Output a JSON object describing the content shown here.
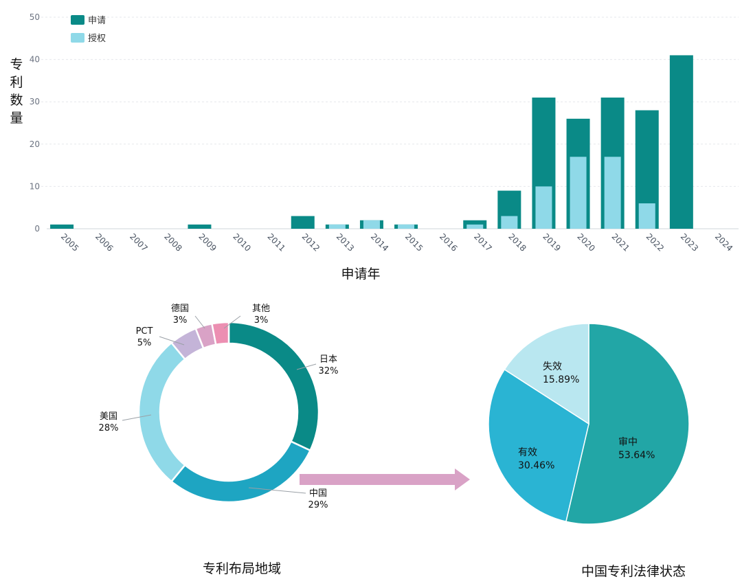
{
  "chart_data": [
    {
      "type": "bar",
      "ylabel": "专利数量",
      "xlabel": "申请年",
      "ylim": [
        0,
        50
      ],
      "yticks": [
        0,
        10,
        20,
        30,
        40,
        50
      ],
      "categories": [
        "2005",
        "2006",
        "2007",
        "2008",
        "2009",
        "2010",
        "2011",
        "2012",
        "2013",
        "2014",
        "2015",
        "2016",
        "2017",
        "2018",
        "2019",
        "2020",
        "2021",
        "2022",
        "2023",
        "2024"
      ],
      "series": [
        {
          "name": "申请",
          "color": "#0a8a87",
          "values": [
            1,
            0,
            0,
            0,
            1,
            0,
            0,
            3,
            1,
            2,
            1,
            0,
            2,
            9,
            31,
            26,
            31,
            28,
            41,
            0
          ]
        },
        {
          "name": "授权",
          "color": "#8fd9e8",
          "values": [
            0,
            0,
            0,
            0,
            0,
            0,
            0,
            0,
            1,
            2,
            1,
            0,
            1,
            3,
            10,
            17,
            17,
            6,
            0,
            0
          ]
        }
      ],
      "legend": "top-left",
      "grid": true
    },
    {
      "type": "pie",
      "title": "专利布局地域",
      "slices": [
        {
          "name": "日本",
          "pct": "32%",
          "value": 32,
          "color": "#0a8a87"
        },
        {
          "name": "中国",
          "pct": "29%",
          "value": 29,
          "color": "#1ea5c2"
        },
        {
          "name": "美国",
          "pct": "28%",
          "value": 28,
          "color": "#8fd9e8"
        },
        {
          "name": "PCT",
          "pct": "5%",
          "value": 5,
          "color": "#c4b4d8"
        },
        {
          "name": "德国",
          "pct": "3%",
          "value": 3,
          "color": "#d9a2c6"
        },
        {
          "name": "其他",
          "pct": "3%",
          "value": 3,
          "color": "#ec8fb2"
        }
      ]
    },
    {
      "type": "pie",
      "title": "中国专利法律状态",
      "slices": [
        {
          "name": "审中",
          "pct": "53.64%",
          "value": 53.64,
          "color": "#22a6a6"
        },
        {
          "name": "有效",
          "pct": "30.46%",
          "value": 30.46,
          "color": "#2ab4d3"
        },
        {
          "name": "失效",
          "pct": "15.89%",
          "value": 15.89,
          "color": "#b9e7f0"
        }
      ]
    }
  ],
  "colors": {
    "arrow": "#d9a2c6",
    "grid": "#e5e7eb"
  }
}
